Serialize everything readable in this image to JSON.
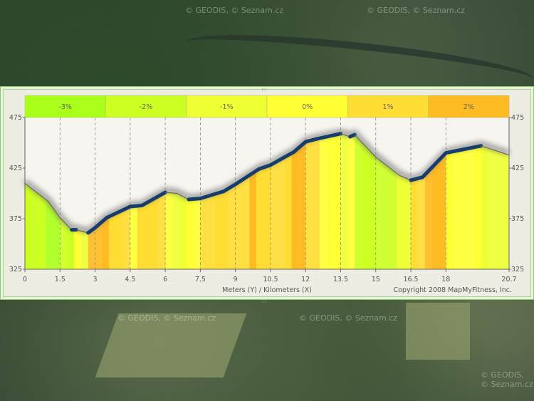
{
  "map": {
    "watermark": "© GEODIS, © Seznam.cz"
  },
  "chart_data": {
    "type": "area",
    "xlabel": "Meters (Y) / Kilometers (X)",
    "copyright": "Copyright 2008 MapMyFitness, Inc.",
    "xlim": [
      0,
      20.7
    ],
    "ylim": [
      325,
      475
    ],
    "x_ticks": [
      "0",
      "1.5",
      "3",
      "4.5",
      "6",
      "7.5",
      "9",
      "10.5",
      "12",
      "13.5",
      "15",
      "16.5",
      "18",
      "20.7"
    ],
    "y_ticks": [
      "475",
      "425",
      "375",
      "325"
    ],
    "grid": "vertical dashed",
    "grade_legend": [
      {
        "label": "-3%",
        "color": "#aaff1a"
      },
      {
        "label": "-2%",
        "color": "#ccff22"
      },
      {
        "label": "-1%",
        "color": "#eeff33"
      },
      {
        "label": "0%",
        "color": "#ffff33"
      },
      {
        "label": "1%",
        "color": "#ffdd33"
      },
      {
        "label": "2%",
        "color": "#ffbb22"
      }
    ],
    "line_color": "#163d6b",
    "x": [
      0,
      1,
      1.5,
      2,
      2.2,
      2.7,
      3,
      3.5,
      4.5,
      5,
      6,
      6.5,
      7,
      7.5,
      8.5,
      9,
      10,
      10.5,
      11.5,
      12,
      12.5,
      13.5,
      13.9,
      14.1,
      15,
      16,
      16.5,
      17,
      18,
      19.5,
      20.7
    ],
    "y": [
      410,
      392,
      376,
      364,
      364,
      361,
      366,
      376,
      387,
      388,
      401,
      400,
      394,
      395,
      402,
      409,
      424,
      428,
      441,
      451,
      454,
      459,
      456,
      458,
      436,
      418,
      413,
      416,
      440,
      447,
      438
    ]
  }
}
